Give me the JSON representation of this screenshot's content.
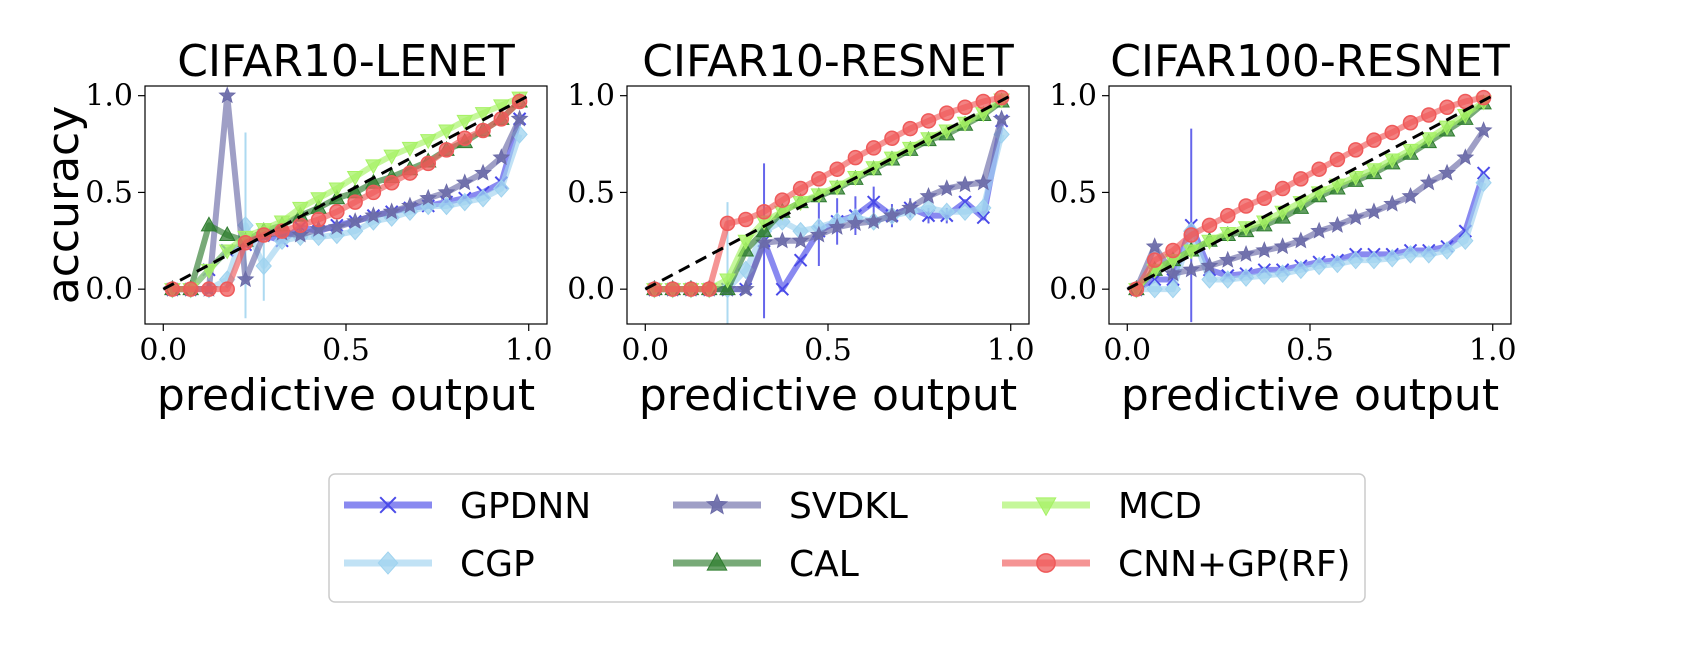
{
  "colors": {
    "GPDNN": "#4a4ae8",
    "CGP": "#9fd3ef",
    "SVDKL": "#6b6ba8",
    "CAL": "#2f7d2f",
    "MCD": "#a6f264",
    "CNN+GP(RF)": "#ef5a5a"
  },
  "legend": {
    "placement": "bottom-center",
    "entries": [
      {
        "label": "GPDNN",
        "marker": "x-icon"
      },
      {
        "label": "SVDKL",
        "marker": "star-icon"
      },
      {
        "label": "MCD",
        "marker": "triangle-down-icon"
      },
      {
        "label": "CGP",
        "marker": "diamond-icon"
      },
      {
        "label": "CAL",
        "marker": "triangle-up-icon"
      },
      {
        "label": "CNN+GP(RF)",
        "marker": "circle-icon"
      }
    ]
  },
  "chart_data": [
    {
      "type": "line",
      "title": "CIFAR10-LENET",
      "xlabel": "predictive output",
      "ylabel": "accuracy",
      "xlim": [
        -0.05,
        1.05
      ],
      "ylim": [
        -0.18,
        1.05
      ],
      "xticks": [
        "0.0",
        "0.5",
        "1.0"
      ],
      "yticks": [
        "0.0",
        "0.5",
        "1.0"
      ],
      "reference_line": [
        [
          0,
          0
        ],
        [
          1,
          1
        ]
      ],
      "series": [
        {
          "name": "GPDNN",
          "x": [
            0.025,
            0.075,
            0.125,
            0.175,
            0.225,
            0.275,
            0.325,
            0.375,
            0.425,
            0.475,
            0.525,
            0.575,
            0.625,
            0.675,
            0.725,
            0.775,
            0.825,
            0.875,
            0.925,
            0.975
          ],
          "y": [
            0,
            0,
            0.1,
            0.2,
            0.23,
            0.28,
            0.25,
            0.32,
            0.3,
            0.33,
            0.35,
            0.38,
            0.4,
            0.42,
            0.43,
            0.45,
            0.47,
            0.5,
            0.55,
            0.88
          ]
        },
        {
          "name": "CGP",
          "x": [
            0.025,
            0.075,
            0.125,
            0.175,
            0.225,
            0.275,
            0.325,
            0.375,
            0.425,
            0.475,
            0.525,
            0.575,
            0.625,
            0.675,
            0.725,
            0.775,
            0.825,
            0.875,
            0.925,
            0.975
          ],
          "y": [
            0,
            0,
            0,
            0.05,
            0.33,
            0.12,
            0.25,
            0.27,
            0.27,
            0.28,
            0.3,
            0.35,
            0.37,
            0.4,
            0.43,
            0.43,
            0.45,
            0.47,
            0.52,
            0.8
          ],
          "err": [
            0,
            0,
            0,
            0,
            0.48,
            0.18,
            0,
            0,
            0,
            0,
            0,
            0,
            0,
            0,
            0,
            0,
            0,
            0,
            0,
            0
          ]
        },
        {
          "name": "SVDKL",
          "x": [
            0.025,
            0.075,
            0.125,
            0.175,
            0.225,
            0.275,
            0.325,
            0.375,
            0.425,
            0.475,
            0.525,
            0.575,
            0.625,
            0.675,
            0.725,
            0.775,
            0.825,
            0.875,
            0.925,
            0.975
          ],
          "y": [
            0,
            0,
            0,
            1.0,
            0.05,
            0.28,
            0.29,
            0.28,
            0.31,
            0.32,
            0.35,
            0.38,
            0.4,
            0.43,
            0.47,
            0.5,
            0.55,
            0.6,
            0.68,
            0.88
          ]
        },
        {
          "name": "CAL",
          "x": [
            0.025,
            0.075,
            0.125,
            0.175,
            0.225,
            0.275,
            0.325,
            0.375,
            0.425,
            0.475,
            0.525,
            0.575,
            0.625,
            0.675,
            0.725,
            0.775,
            0.825,
            0.875,
            0.925,
            0.975
          ],
          "y": [
            0,
            0,
            0.33,
            0.28,
            0.25,
            0.3,
            0.33,
            0.38,
            0.42,
            0.47,
            0.5,
            0.55,
            0.58,
            0.62,
            0.66,
            0.72,
            0.76,
            0.82,
            0.88,
            0.97
          ]
        },
        {
          "name": "MCD",
          "x": [
            0.025,
            0.075,
            0.125,
            0.175,
            0.225,
            0.275,
            0.325,
            0.375,
            0.425,
            0.475,
            0.525,
            0.575,
            0.625,
            0.675,
            0.725,
            0.775,
            0.825,
            0.875,
            0.925,
            0.975
          ],
          "y": [
            0,
            0,
            0.1,
            0.2,
            0.27,
            0.31,
            0.35,
            0.42,
            0.47,
            0.52,
            0.58,
            0.64,
            0.69,
            0.73,
            0.77,
            0.82,
            0.87,
            0.91,
            0.95,
            0.99
          ]
        },
        {
          "name": "CNN+GP(RF)",
          "x": [
            0.025,
            0.075,
            0.125,
            0.175,
            0.225,
            0.275,
            0.325,
            0.375,
            0.425,
            0.475,
            0.525,
            0.575,
            0.625,
            0.675,
            0.725,
            0.775,
            0.825,
            0.875,
            0.925,
            0.975
          ],
          "y": [
            0,
            0,
            0,
            0,
            0.24,
            0.28,
            0.3,
            0.33,
            0.36,
            0.4,
            0.45,
            0.5,
            0.55,
            0.6,
            0.65,
            0.72,
            0.78,
            0.82,
            0.88,
            0.97
          ]
        }
      ]
    },
    {
      "type": "line",
      "title": "CIFAR10-RESNET",
      "xlabel": "predictive output",
      "ylabel": "",
      "xlim": [
        -0.05,
        1.05
      ],
      "ylim": [
        -0.18,
        1.05
      ],
      "xticks": [
        "0.0",
        "0.5",
        "1.0"
      ],
      "yticks": [
        "0.0",
        "0.5",
        "1.0"
      ],
      "reference_line": [
        [
          0,
          0
        ],
        [
          1,
          1
        ]
      ],
      "series": [
        {
          "name": "GPDNN",
          "x": [
            0.025,
            0.075,
            0.125,
            0.175,
            0.225,
            0.275,
            0.325,
            0.375,
            0.425,
            0.475,
            0.525,
            0.575,
            0.625,
            0.675,
            0.725,
            0.775,
            0.825,
            0.875,
            0.925,
            0.975
          ],
          "y": [
            0,
            0,
            0,
            0,
            0,
            0,
            0.25,
            0,
            0.15,
            0.3,
            0.35,
            0.38,
            0.45,
            0.38,
            0.42,
            0.38,
            0.38,
            0.45,
            0.37,
            0.87
          ],
          "err": [
            0,
            0,
            0,
            0,
            0,
            0,
            0.4,
            0,
            0,
            0.18,
            0.12,
            0.1,
            0.08,
            0.06,
            0.05,
            0.04,
            0.04,
            0,
            0,
            0
          ]
        },
        {
          "name": "CGP",
          "x": [
            0.025,
            0.075,
            0.125,
            0.175,
            0.225,
            0.275,
            0.325,
            0.375,
            0.425,
            0.475,
            0.525,
            0.575,
            0.625,
            0.675,
            0.725,
            0.775,
            0.825,
            0.875,
            0.925,
            0.975
          ],
          "y": [
            0,
            0,
            0,
            0,
            0,
            0.1,
            0.3,
            0.35,
            0.3,
            0.32,
            0.35,
            0.37,
            0.35,
            0.38,
            0.4,
            0.42,
            0.4,
            0.4,
            0.42,
            0.8
          ],
          "err": [
            0,
            0,
            0,
            0,
            0.45,
            0,
            0,
            0,
            0,
            0,
            0,
            0,
            0,
            0,
            0,
            0,
            0,
            0,
            0,
            0
          ]
        },
        {
          "name": "SVDKL",
          "x": [
            0.025,
            0.075,
            0.125,
            0.175,
            0.225,
            0.275,
            0.325,
            0.375,
            0.425,
            0.475,
            0.525,
            0.575,
            0.625,
            0.675,
            0.725,
            0.775,
            0.825,
            0.875,
            0.925,
            0.975
          ],
          "y": [
            0,
            0,
            0,
            0,
            0,
            0,
            0.24,
            0.25,
            0.25,
            0.28,
            0.32,
            0.34,
            0.35,
            0.38,
            0.42,
            0.48,
            0.52,
            0.54,
            0.55,
            0.88
          ]
        },
        {
          "name": "CAL",
          "x": [
            0.025,
            0.075,
            0.125,
            0.175,
            0.225,
            0.275,
            0.325,
            0.375,
            0.425,
            0.475,
            0.525,
            0.575,
            0.625,
            0.675,
            0.725,
            0.775,
            0.825,
            0.875,
            0.925,
            0.975
          ],
          "y": [
            0,
            0,
            0,
            0,
            0,
            0.2,
            0.3,
            0.4,
            0.45,
            0.48,
            0.52,
            0.57,
            0.62,
            0.67,
            0.72,
            0.77,
            0.8,
            0.85,
            0.9,
            0.97
          ]
        },
        {
          "name": "MCD",
          "x": [
            0.025,
            0.075,
            0.125,
            0.175,
            0.225,
            0.275,
            0.325,
            0.375,
            0.425,
            0.475,
            0.525,
            0.575,
            0.625,
            0.675,
            0.725,
            0.775,
            0.825,
            0.875,
            0.925,
            0.975
          ],
          "y": [
            0,
            0,
            0,
            0,
            0.05,
            0.25,
            0.35,
            0.4,
            0.45,
            0.49,
            0.53,
            0.58,
            0.63,
            0.68,
            0.73,
            0.78,
            0.82,
            0.86,
            0.91,
            0.98
          ]
        },
        {
          "name": "CNN+GP(RF)",
          "x": [
            0.025,
            0.075,
            0.125,
            0.175,
            0.225,
            0.275,
            0.325,
            0.375,
            0.425,
            0.475,
            0.525,
            0.575,
            0.625,
            0.675,
            0.725,
            0.775,
            0.825,
            0.875,
            0.925,
            0.975
          ],
          "y": [
            0,
            0,
            0,
            0,
            0.34,
            0.36,
            0.4,
            0.46,
            0.52,
            0.57,
            0.62,
            0.68,
            0.73,
            0.78,
            0.83,
            0.87,
            0.91,
            0.94,
            0.97,
            0.99
          ]
        }
      ]
    },
    {
      "type": "line",
      "title": "CIFAR100-RESNET",
      "xlabel": "predictive output",
      "ylabel": "",
      "xlim": [
        -0.05,
        1.05
      ],
      "ylim": [
        -0.18,
        1.05
      ],
      "xticks": [
        "0.0",
        "0.5",
        "1.0"
      ],
      "yticks": [
        "0.0",
        "0.5",
        "1.0"
      ],
      "reference_line": [
        [
          0,
          0
        ],
        [
          1,
          1
        ]
      ],
      "series": [
        {
          "name": "GPDNN",
          "x": [
            0.025,
            0.075,
            0.125,
            0.175,
            0.225,
            0.275,
            0.325,
            0.375,
            0.425,
            0.475,
            0.525,
            0.575,
            0.625,
            0.675,
            0.725,
            0.775,
            0.825,
            0.875,
            0.925,
            0.975
          ],
          "y": [
            0,
            0.05,
            0.05,
            0.33,
            0.1,
            0.07,
            0.08,
            0.1,
            0.1,
            0.12,
            0.14,
            0.15,
            0.18,
            0.18,
            0.18,
            0.2,
            0.2,
            0.22,
            0.3,
            0.6
          ],
          "err": [
            0,
            0,
            0,
            0.5,
            0,
            0,
            0,
            0,
            0,
            0,
            0,
            0,
            0,
            0,
            0,
            0,
            0,
            0,
            0,
            0
          ]
        },
        {
          "name": "CGP",
          "x": [
            0.025,
            0.075,
            0.125,
            0.175,
            0.225,
            0.275,
            0.325,
            0.375,
            0.425,
            0.475,
            0.525,
            0.575,
            0.625,
            0.675,
            0.725,
            0.775,
            0.825,
            0.875,
            0.925,
            0.975
          ],
          "y": [
            0,
            0,
            0,
            0.3,
            0.05,
            0.05,
            0.06,
            0.07,
            0.08,
            0.1,
            0.12,
            0.13,
            0.15,
            0.15,
            0.16,
            0.18,
            0.18,
            0.2,
            0.25,
            0.55
          ]
        },
        {
          "name": "SVDKL",
          "x": [
            0.025,
            0.075,
            0.125,
            0.175,
            0.225,
            0.275,
            0.325,
            0.375,
            0.425,
            0.475,
            0.525,
            0.575,
            0.625,
            0.675,
            0.725,
            0.775,
            0.825,
            0.875,
            0.925,
            0.975
          ],
          "y": [
            0,
            0.22,
            0.08,
            0.1,
            0.12,
            0.15,
            0.18,
            0.2,
            0.22,
            0.25,
            0.3,
            0.33,
            0.37,
            0.4,
            0.44,
            0.48,
            0.55,
            0.6,
            0.68,
            0.82
          ]
        },
        {
          "name": "CAL",
          "x": [
            0.025,
            0.075,
            0.125,
            0.175,
            0.225,
            0.275,
            0.325,
            0.375,
            0.425,
            0.475,
            0.525,
            0.575,
            0.625,
            0.675,
            0.725,
            0.775,
            0.825,
            0.875,
            0.925,
            0.975
          ],
          "y": [
            0,
            0.1,
            0.15,
            0.2,
            0.25,
            0.28,
            0.3,
            0.33,
            0.37,
            0.42,
            0.48,
            0.52,
            0.56,
            0.6,
            0.65,
            0.7,
            0.76,
            0.82,
            0.88,
            0.96
          ]
        },
        {
          "name": "MCD",
          "x": [
            0.025,
            0.075,
            0.125,
            0.175,
            0.225,
            0.275,
            0.325,
            0.375,
            0.425,
            0.475,
            0.525,
            0.575,
            0.625,
            0.675,
            0.725,
            0.775,
            0.825,
            0.875,
            0.925,
            0.975
          ],
          "y": [
            0,
            0.1,
            0.15,
            0.2,
            0.25,
            0.29,
            0.32,
            0.35,
            0.4,
            0.45,
            0.5,
            0.54,
            0.58,
            0.62,
            0.67,
            0.72,
            0.78,
            0.84,
            0.9,
            0.97
          ]
        },
        {
          "name": "CNN+GP(RF)",
          "x": [
            0.025,
            0.075,
            0.125,
            0.175,
            0.225,
            0.275,
            0.325,
            0.375,
            0.425,
            0.475,
            0.525,
            0.575,
            0.625,
            0.675,
            0.725,
            0.775,
            0.825,
            0.875,
            0.925,
            0.975
          ],
          "y": [
            0,
            0.15,
            0.2,
            0.28,
            0.33,
            0.38,
            0.43,
            0.47,
            0.52,
            0.57,
            0.62,
            0.67,
            0.72,
            0.77,
            0.81,
            0.86,
            0.9,
            0.94,
            0.97,
            0.99
          ]
        }
      ]
    }
  ]
}
